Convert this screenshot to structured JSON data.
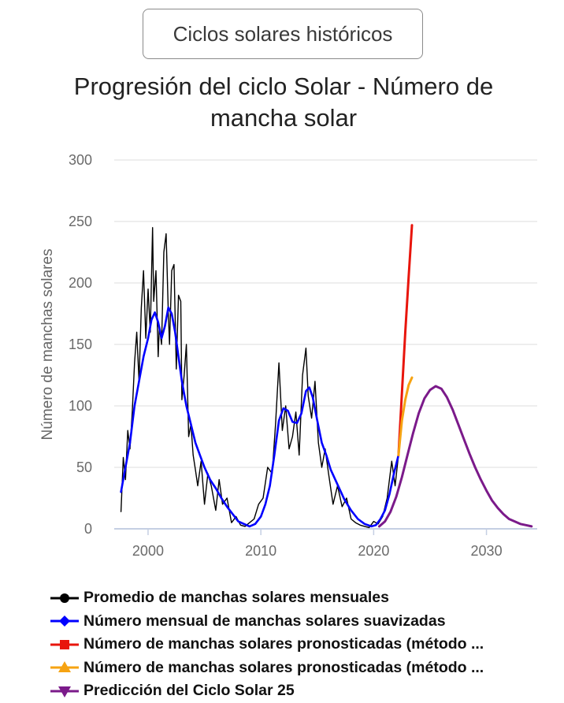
{
  "button": {
    "label": "Ciclos solares históricos"
  },
  "chart_data": {
    "type": "line",
    "title": "Progresión del ciclo Solar - Número de mancha solar",
    "xlabel": "",
    "ylabel": "Número de manchas solares",
    "xlim": [
      1997.0,
      2034.5
    ],
    "ylim": [
      0,
      300
    ],
    "yticks": [
      0,
      50,
      100,
      150,
      200,
      250,
      300
    ],
    "xticks": [
      2000,
      2010,
      2020,
      2030
    ],
    "grid": true,
    "legend_position": "bottom",
    "series": [
      {
        "name": "Promedio de manchas solares mensuales",
        "color": "#000000",
        "marker": "circle",
        "x": [
          1997.6,
          1997.8,
          1998.0,
          1998.2,
          1998.4,
          1998.6,
          1998.8,
          1999.0,
          1999.2,
          1999.4,
          1999.6,
          1999.8,
          2000.0,
          2000.2,
          2000.4,
          2000.5,
          2000.7,
          2000.9,
          2001.0,
          2001.2,
          2001.4,
          2001.6,
          2001.8,
          2001.9,
          2002.1,
          2002.3,
          2002.5,
          2002.7,
          2002.9,
          2003.0,
          2003.2,
          2003.4,
          2003.6,
          2003.8,
          2004.0,
          2004.2,
          2004.4,
          2004.7,
          2005.0,
          2005.3,
          2005.6,
          2006.0,
          2006.3,
          2006.6,
          2007.0,
          2007.4,
          2007.8,
          2008.2,
          2008.6,
          2009.0,
          2009.4,
          2009.8,
          2010.2,
          2010.6,
          2011.0,
          2011.3,
          2011.6,
          2011.9,
          2012.2,
          2012.5,
          2012.8,
          2013.1,
          2013.4,
          2013.7,
          2014.0,
          2014.2,
          2014.5,
          2014.8,
          2015.1,
          2015.4,
          2015.7,
          2016.0,
          2016.4,
          2016.8,
          2017.2,
          2017.6,
          2018.0,
          2018.4,
          2018.8,
          2019.2,
          2019.6,
          2020.0,
          2020.4,
          2020.8,
          2021.2,
          2021.6,
          2021.9,
          2022.2
        ],
        "values": [
          14,
          58,
          40,
          80,
          65,
          95,
          135,
          160,
          120,
          180,
          210,
          155,
          195,
          160,
          245,
          185,
          210,
          140,
          165,
          150,
          225,
          240,
          175,
          150,
          210,
          215,
          130,
          190,
          185,
          105,
          125,
          150,
          75,
          85,
          60,
          48,
          35,
          55,
          20,
          45,
          35,
          15,
          40,
          20,
          25,
          5,
          10,
          3,
          2,
          5,
          8,
          20,
          25,
          50,
          45,
          85,
          135,
          80,
          100,
          65,
          75,
          95,
          60,
          125,
          147,
          108,
          90,
          120,
          70,
          50,
          65,
          45,
          20,
          35,
          18,
          25,
          8,
          5,
          3,
          2,
          1,
          6,
          4,
          10,
          25,
          55,
          35,
          60
        ]
      },
      {
        "name": "Número mensual de manchas solares suavizadas",
        "color": "#0000ff",
        "marker": "diamond",
        "x": [
          1997.6,
          1998.0,
          1998.4,
          1998.8,
          1999.2,
          1999.6,
          2000.0,
          2000.3,
          2000.6,
          2000.9,
          2001.2,
          2001.5,
          2001.8,
          2002.1,
          2002.4,
          2002.7,
          2003.0,
          2003.4,
          2003.8,
          2004.2,
          2004.6,
          2005.0,
          2005.5,
          2006.0,
          2006.5,
          2007.0,
          2007.5,
          2008.0,
          2008.5,
          2009.0,
          2009.5,
          2010.0,
          2010.4,
          2010.8,
          2011.2,
          2011.6,
          2012.0,
          2012.4,
          2012.8,
          2013.2,
          2013.6,
          2014.0,
          2014.3,
          2014.6,
          2015.0,
          2015.4,
          2015.8,
          2016.2,
          2016.8,
          2017.4,
          2018.0,
          2018.6,
          2019.2,
          2019.8,
          2020.2,
          2020.6,
          2021.0,
          2021.4,
          2021.8,
          2022.2
        ],
        "values": [
          30,
          50,
          70,
          100,
          120,
          140,
          155,
          170,
          176,
          168,
          155,
          165,
          180,
          175,
          160,
          140,
          120,
          100,
          85,
          70,
          60,
          50,
          40,
          33,
          25,
          18,
          12,
          6,
          4,
          2,
          4,
          10,
          20,
          35,
          60,
          88,
          98,
          96,
          87,
          86,
          94,
          112,
          115,
          107,
          88,
          70,
          60,
          48,
          36,
          24,
          15,
          8,
          4,
          2,
          3,
          8,
          15,
          28,
          45,
          60
        ]
      },
      {
        "name": "Número de manchas solares pronosticadas (método ...",
        "color": "#e8150c",
        "marker": "square",
        "x": [
          2022.2,
          2022.5,
          2022.8,
          2023.1,
          2023.4
        ],
        "values": [
          60,
          110,
          160,
          205,
          247
        ]
      },
      {
        "name": "Número de manchas solares pronosticadas (método ...",
        "color": "#f6a312",
        "marker": "triangle-up",
        "x": [
          2022.2,
          2022.5,
          2022.8,
          2023.1,
          2023.4
        ],
        "values": [
          60,
          88,
          105,
          117,
          123
        ]
      },
      {
        "name": "Predicción del Ciclo Solar 25",
        "color": "#7b1a8a",
        "marker": "triangle-down",
        "x": [
          2020.5,
          2021.0,
          2021.5,
          2022.0,
          2022.5,
          2023.0,
          2023.5,
          2024.0,
          2024.5,
          2025.0,
          2025.5,
          2026.0,
          2026.5,
          2027.0,
          2027.5,
          2028.0,
          2028.5,
          2029.0,
          2029.5,
          2030.0,
          2030.5,
          2031.0,
          2031.5,
          2032.0,
          2032.5,
          2033.0,
          2033.5,
          2034.0
        ],
        "values": [
          2,
          6,
          14,
          26,
          42,
          60,
          78,
          94,
          106,
          113,
          116,
          114,
          107,
          97,
          85,
          73,
          61,
          50,
          40,
          31,
          23,
          17,
          12,
          8,
          6,
          4,
          3,
          2
        ]
      }
    ]
  }
}
